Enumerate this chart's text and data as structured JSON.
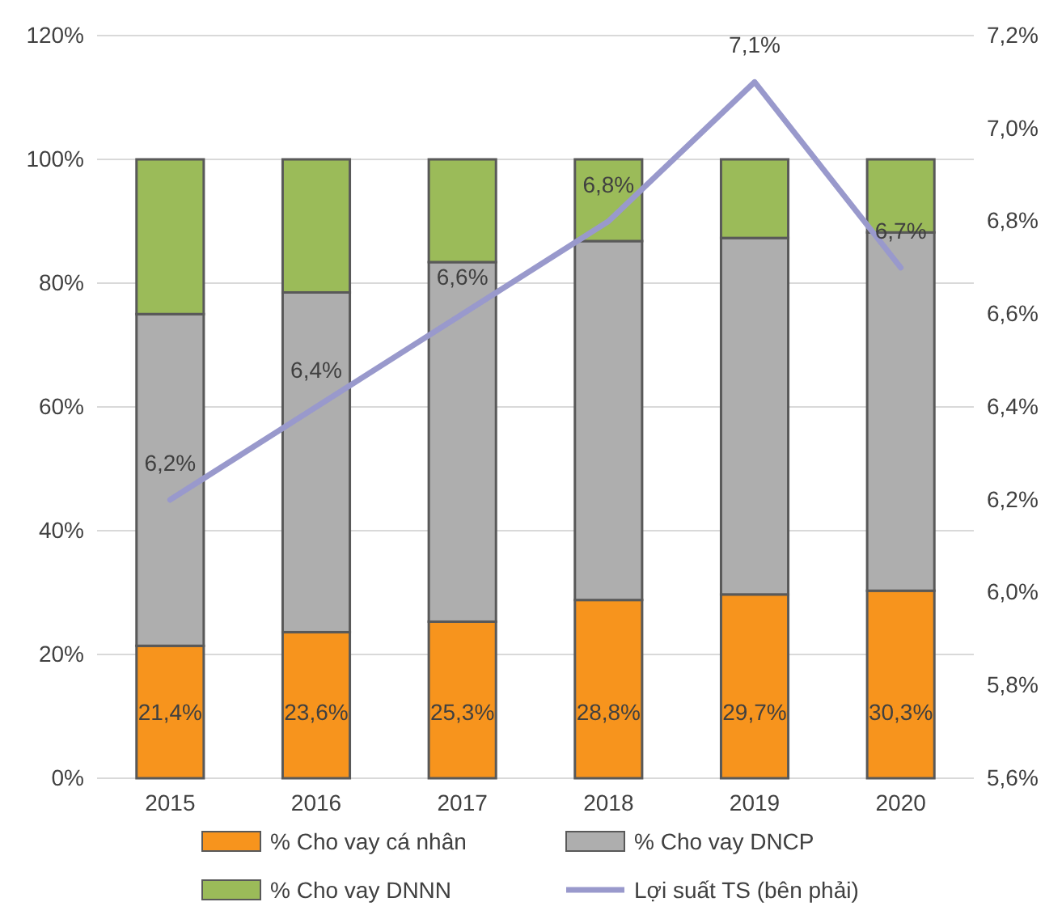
{
  "chart_data": {
    "type": "bar",
    "stacked": true,
    "categories": [
      "2015",
      "2016",
      "2017",
      "2018",
      "2019",
      "2020"
    ],
    "series": [
      {
        "name": "% Cho vay cá nhân",
        "color": "#f7941d",
        "values": [
          21.4,
          23.6,
          25.3,
          28.8,
          29.7,
          30.3
        ],
        "value_labels": [
          "21,4%",
          "23,6%",
          "25,3%",
          "28,8%",
          "29,7%",
          "30,3%"
        ]
      },
      {
        "name": "% Cho vay DNCP",
        "color": "#aeaeae",
        "values": [
          53.6,
          54.9,
          58.1,
          58.0,
          57.6,
          57.9
        ]
      },
      {
        "name": "% Cho vay DNNN",
        "color": "#9bbb59",
        "values": [
          25.0,
          21.5,
          16.6,
          13.2,
          12.7,
          11.8
        ]
      },
      {
        "name": "Lợi suất TS (bên phải)",
        "type": "line",
        "axis": "y2",
        "color": "#9999cc",
        "values": [
          6.2,
          6.4,
          6.6,
          6.8,
          7.1,
          6.7
        ],
        "value_labels": [
          "6,2%",
          "6,4%",
          "6,6%",
          "6,8%",
          "7,1%",
          "6,7%"
        ]
      }
    ],
    "ylim": [
      0,
      120
    ],
    "yticks": [
      {
        "value": 0,
        "label": "0%"
      },
      {
        "value": 20,
        "label": "20%"
      },
      {
        "value": 40,
        "label": "40%"
      },
      {
        "value": 60,
        "label": "60%"
      },
      {
        "value": 80,
        "label": "80%"
      },
      {
        "value": 100,
        "label": "100%"
      },
      {
        "value": 120,
        "label": "120%"
      }
    ],
    "y2lim": [
      5.6,
      7.2
    ],
    "y2ticks": [
      {
        "value": 5.6,
        "label": "5,6%"
      },
      {
        "value": 5.8,
        "label": "5,8%"
      },
      {
        "value": 6.0,
        "label": "6,0%"
      },
      {
        "value": 6.2,
        "label": "6,2%"
      },
      {
        "value": 6.4,
        "label": "6,4%"
      },
      {
        "value": 6.6,
        "label": "6,6%"
      },
      {
        "value": 6.8,
        "label": "6,8%"
      },
      {
        "value": 7.0,
        "label": "7,0%"
      },
      {
        "value": 7.2,
        "label": "7,2%"
      }
    ],
    "grid": "y",
    "legend": "bottom",
    "marker": "none",
    "line_style": "solid"
  }
}
